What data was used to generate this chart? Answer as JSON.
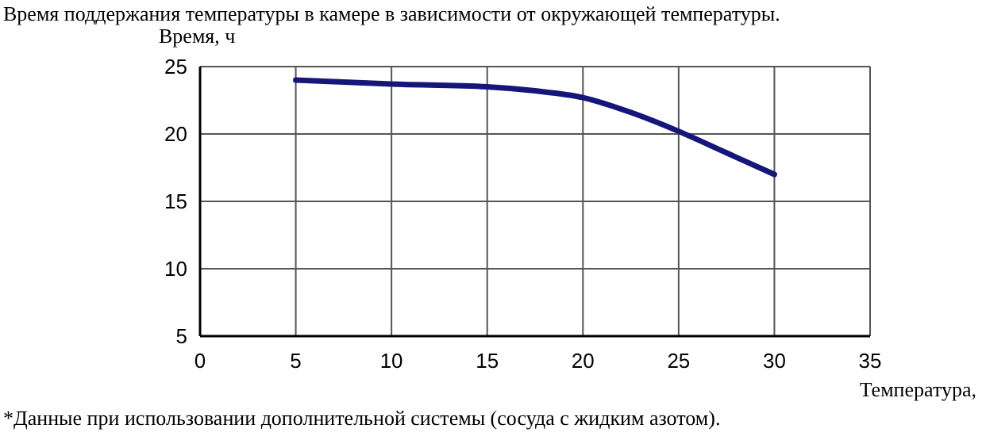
{
  "chart_data": {
    "type": "line",
    "title": "Время поддержания температуры в камере в зависимости от окружающей температуры.",
    "ylabel": "Время, ч",
    "xlabel": "Температура,",
    "annotations": [
      "*Данные при использовании дополнительной системы (сосуда с жидким азотом)."
    ],
    "x": [
      5,
      10,
      15,
      17.5,
      20,
      22.5,
      25,
      27.5,
      30
    ],
    "series": [
      {
        "color": "#16167a",
        "values": [
          24.0,
          23.7,
          23.5,
          23.2,
          22.7,
          21.6,
          20.2,
          18.6,
          17.0
        ]
      }
    ],
    "xlim": [
      0,
      35
    ],
    "xticks": [
      0,
      5,
      10,
      15,
      20,
      25,
      30,
      35
    ],
    "ylim": [
      5,
      25
    ],
    "yticks": [
      5,
      10,
      15,
      20,
      25
    ],
    "grid": true,
    "marker": "none",
    "line_style": "solid"
  }
}
